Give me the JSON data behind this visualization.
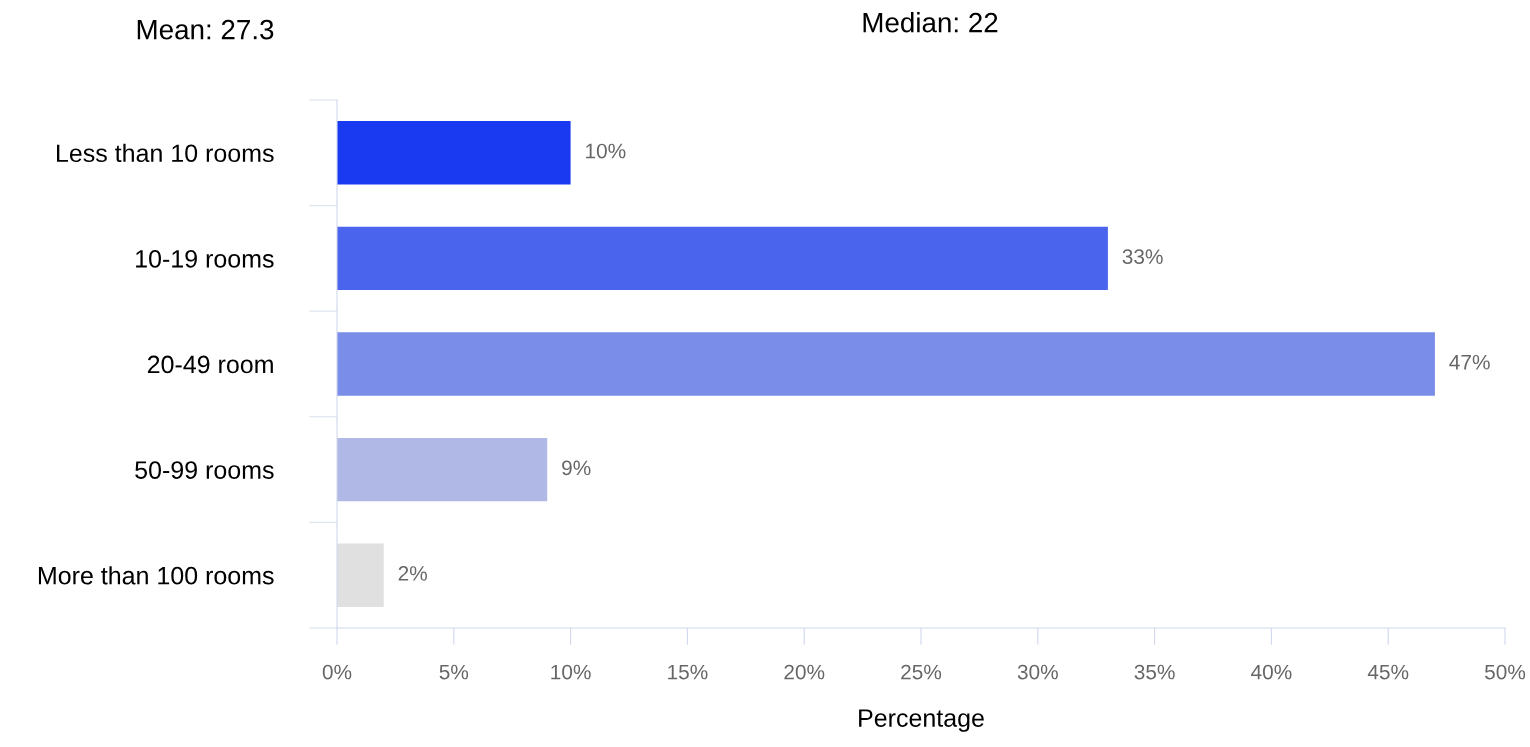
{
  "chart_data": {
    "type": "bar",
    "orientation": "horizontal",
    "categories": [
      "Less than 10 rooms",
      "10-19 rooms",
      "20-49 room",
      "50-99 rooms",
      "More than 100 rooms"
    ],
    "values": [
      10,
      33,
      47,
      9,
      2
    ],
    "colors": [
      "#1a3af2",
      "#4a64ee",
      "#7a8de9",
      "#b0b8e6",
      "#e0e0e0"
    ],
    "value_labels": [
      "10%",
      "33%",
      "47%",
      "9%",
      "2%"
    ],
    "xlim": [
      0,
      50
    ],
    "xticks": [
      {
        "value": 0,
        "label": "0%"
      },
      {
        "value": 5,
        "label": "5%"
      },
      {
        "value": 10,
        "label": "10%"
      },
      {
        "value": 15,
        "label": "15%"
      },
      {
        "value": 20,
        "label": "20%"
      },
      {
        "value": 25,
        "label": "25%"
      },
      {
        "value": 30,
        "label": "30%"
      },
      {
        "value": 35,
        "label": "35%"
      },
      {
        "value": 40,
        "label": "40%"
      },
      {
        "value": 45,
        "label": "45%"
      },
      {
        "value": 50,
        "label": "50%"
      }
    ],
    "xlabel": "Percentage",
    "annotations": [
      "Mean: 27.3",
      "Median: 22"
    ],
    "grid": false,
    "legend": false
  }
}
